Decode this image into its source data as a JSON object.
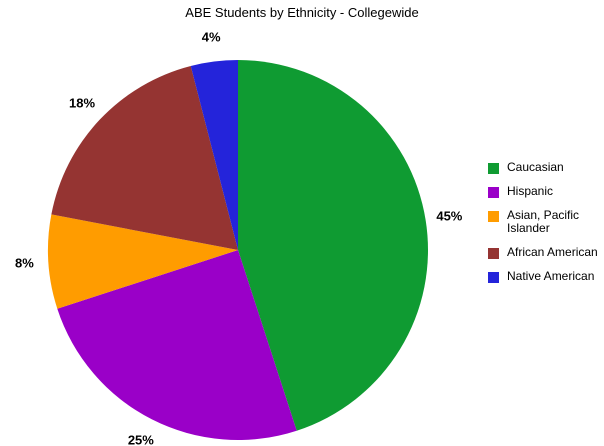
{
  "chart_data": {
    "type": "pie",
    "title": "ABE Students by Ethnicity - Collegewide",
    "categories": [
      "Caucasian",
      "Hispanic",
      "Asian, Pacific Islander",
      "African American",
      "Native American"
    ],
    "values": [
      45,
      25,
      8,
      18,
      4
    ],
    "labels": [
      "45%",
      "25%",
      "8%",
      "18%",
      "4%"
    ],
    "colors": [
      "#0f9b32",
      "#9a00c8",
      "#ff9c00",
      "#953432",
      "#2424da"
    ],
    "start_angle_deg": 0,
    "direction": "clockwise",
    "legend_position": "right"
  }
}
